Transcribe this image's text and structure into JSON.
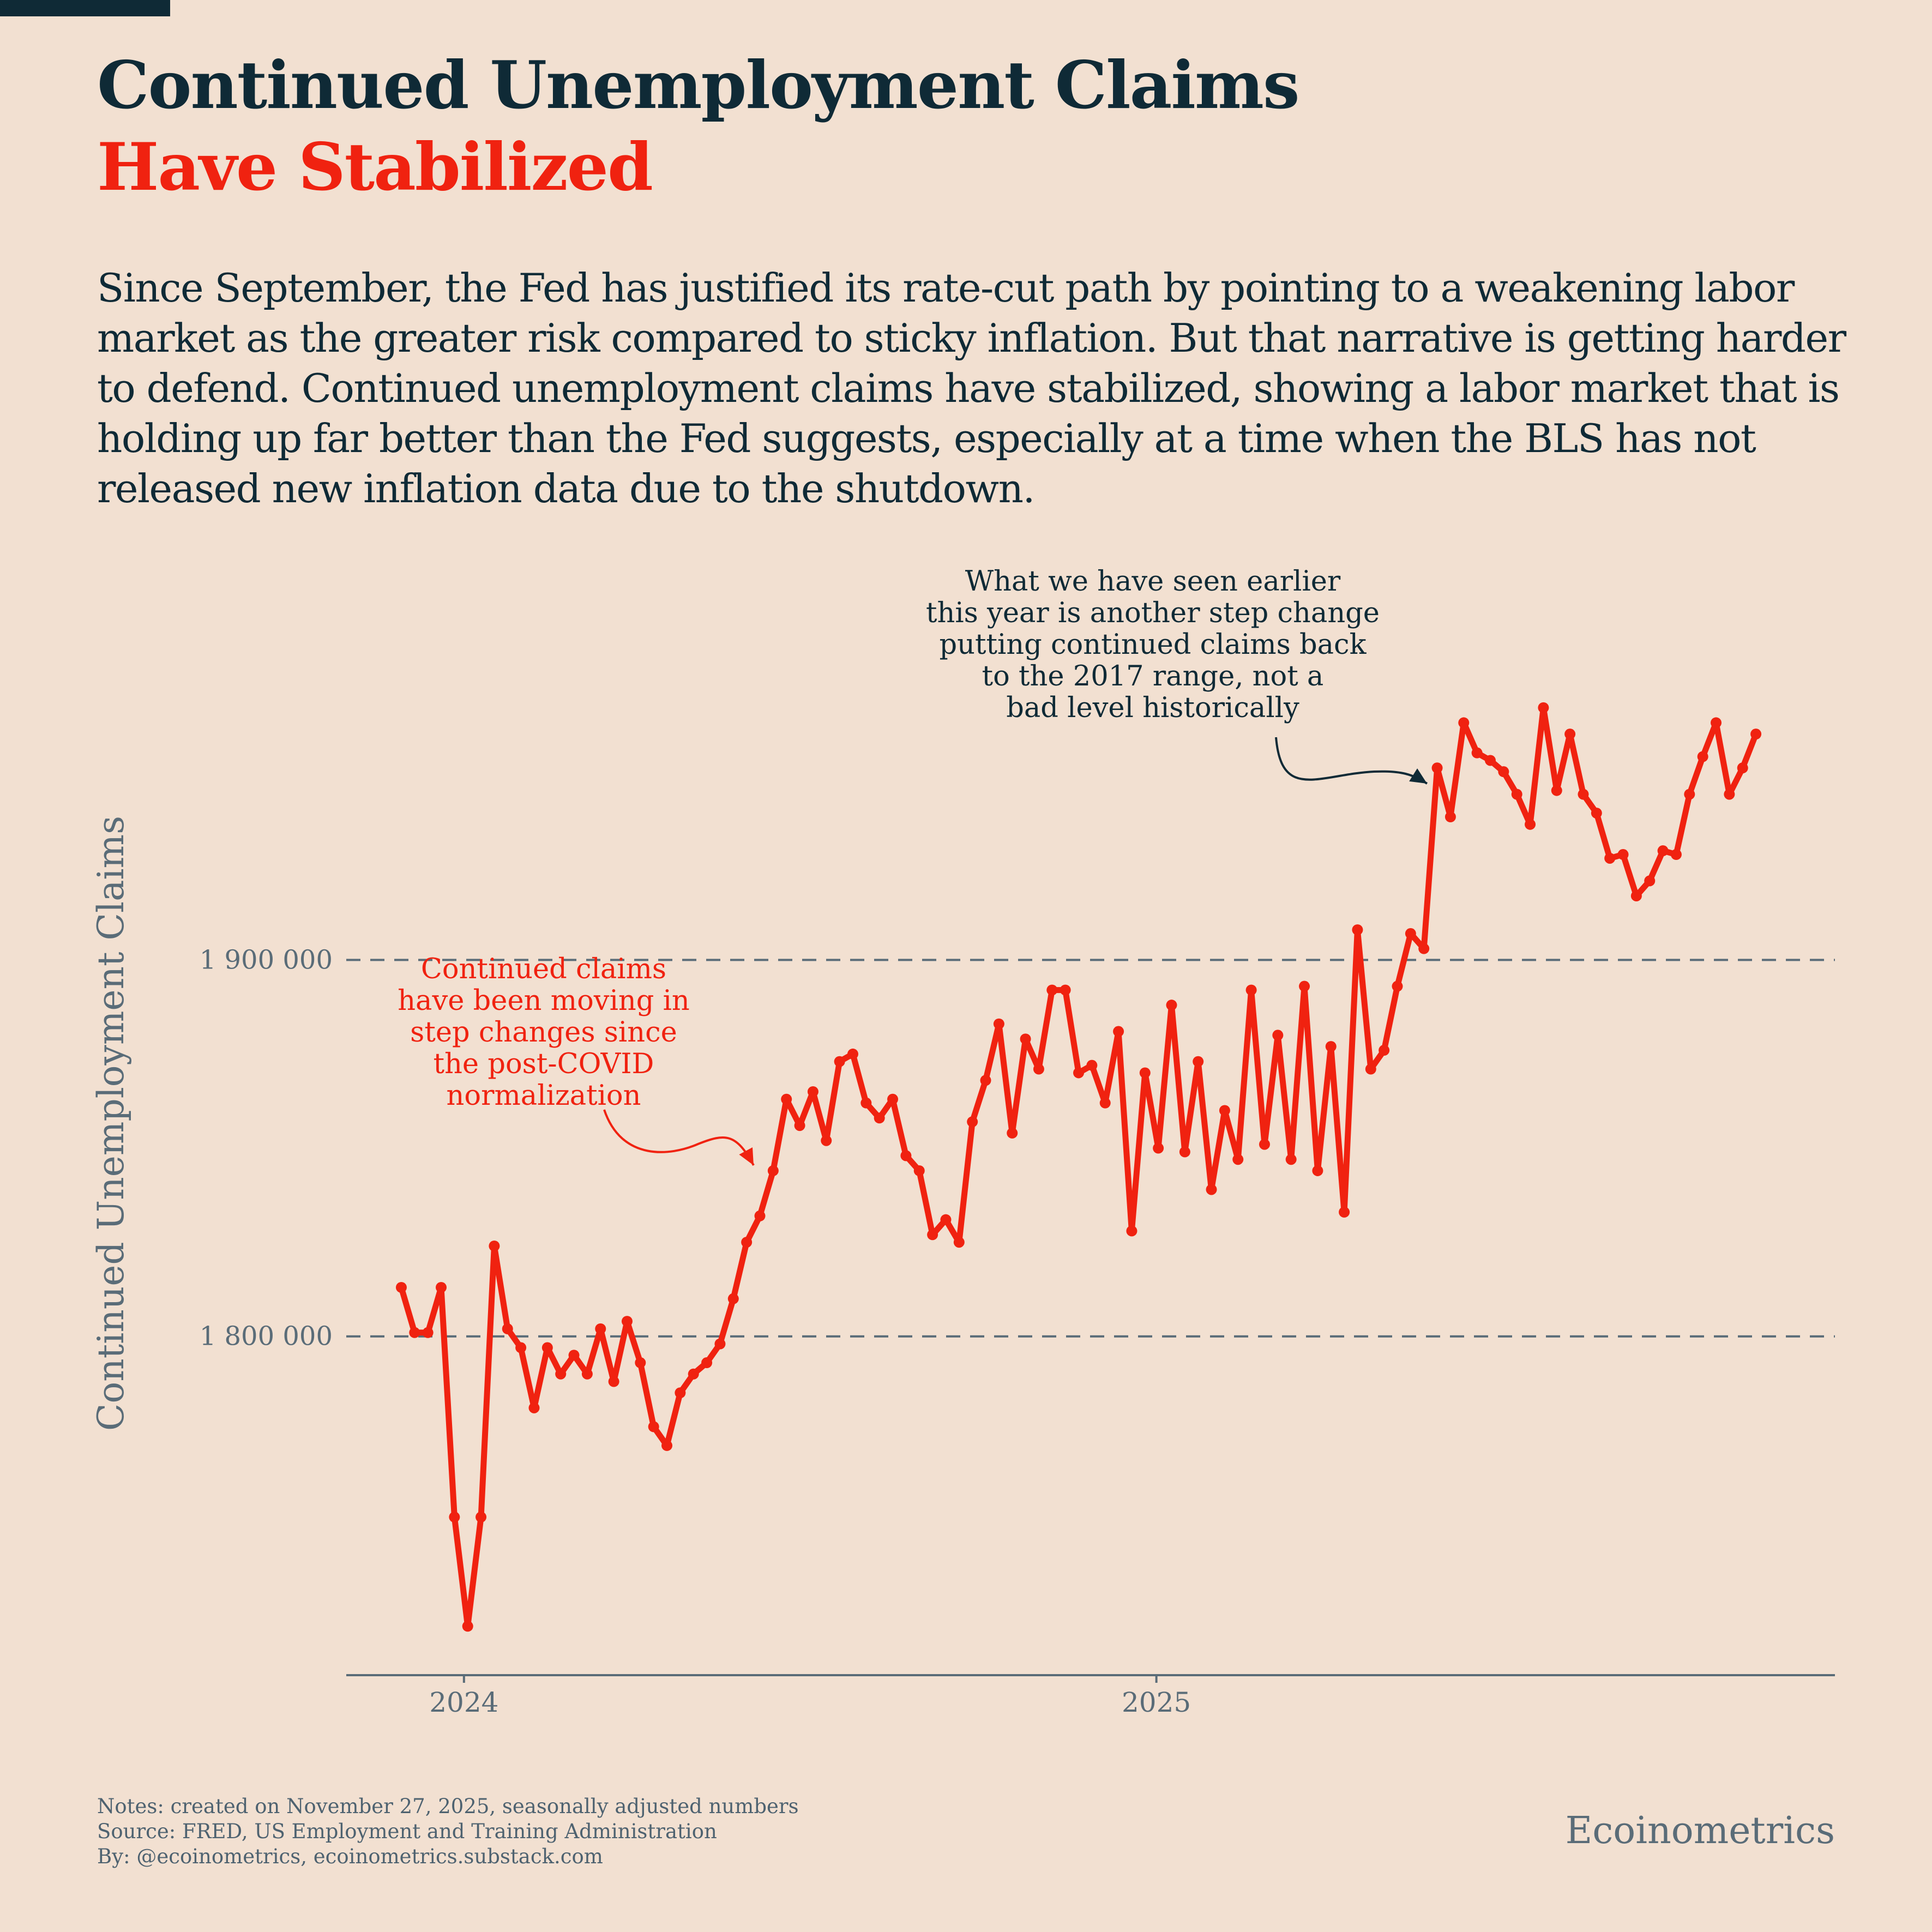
{
  "header": {
    "title": "Continued Unemployment Claims",
    "subtitle": "Have Stabilized",
    "intro": "Since September, the Fed has justified its rate-cut path by pointing to a weakening labor market as the greater risk compared to sticky inflation. But that narrative is getting harder to defend. Continued unemployment claims have stabilized, showing a labor market that is holding up far better than the Fed suggests, especially at a time when the BLS has not released new inflation data due to the shutdown."
  },
  "colors": {
    "background": "#f2e0d1",
    "title": "#0f2a36",
    "accent": "#f02210",
    "axis": "#5a6c78",
    "grid": "#5a6c78"
  },
  "chart_data": {
    "type": "line",
    "ylabel": "Continued Unemployment Claims",
    "xlabel": "",
    "xlim": [
      2023.83,
      2025.98
    ],
    "ylim": [
      1710000,
      2000000
    ],
    "xticks": [
      {
        "value": 2024.0,
        "label": "2024"
      },
      {
        "value": 2025.0,
        "label": "2025"
      }
    ],
    "yticks": [
      {
        "value": 1800000,
        "label": "1 800 000"
      },
      {
        "value": 1900000,
        "label": "1 900 000"
      }
    ],
    "grid": "horizontal-dashed",
    "series": [
      {
        "name": "Continued Unemployment Claims",
        "start": 2023.9095,
        "step": 0.01918,
        "values": [
          1813000,
          1801000,
          1801000,
          1813000,
          1752000,
          1723000,
          1752000,
          1824000,
          1802000,
          1797000,
          1781000,
          1797000,
          1790000,
          1795000,
          1790000,
          1802000,
          1788000,
          1804000,
          1793000,
          1776000,
          1771000,
          1785000,
          1790000,
          1793000,
          1798000,
          1810000,
          1825000,
          1832000,
          1844000,
          1863000,
          1856000,
          1865000,
          1852000,
          1873000,
          1875000,
          1862000,
          1858000,
          1863000,
          1848000,
          1844000,
          1827000,
          1831000,
          1825000,
          1857000,
          1868000,
          1883000,
          1854000,
          1879000,
          1871000,
          1892000,
          1892000,
          1870000,
          1872000,
          1862000,
          1881000,
          1828000,
          1870000,
          1850000,
          1888000,
          1849000,
          1873000,
          1839000,
          1860000,
          1847000,
          1892000,
          1851000,
          1880000,
          1847000,
          1893000,
          1844000,
          1877000,
          1833000,
          1908000,
          1871000,
          1876000,
          1893000,
          1907000,
          1903000,
          1951000,
          1938000,
          1963000,
          1955000,
          1953000,
          1950000,
          1944000,
          1936000,
          1967000,
          1945000,
          1960000,
          1944000,
          1939000,
          1927000,
          1928000,
          1917000,
          1921000,
          1929000,
          1928000,
          1944000,
          1954000,
          1963000,
          1944000,
          1951000,
          1960000
        ]
      }
    ],
    "annotations": [
      {
        "id": "step-changes",
        "color": "red",
        "lines": [
          "Continued claims",
          "have been moving in",
          "step changes since",
          "the post-COVID",
          "normalization"
        ]
      },
      {
        "id": "earlier-this-year",
        "color": "dark",
        "lines": [
          "What we have seen earlier",
          "this year is another step change",
          "putting continued claims back",
          "to the 2017 range, not a",
          "bad level historically"
        ]
      }
    ]
  },
  "footer": {
    "notes": "Notes: created on November 27, 2025, seasonally adjusted numbers",
    "source": "Source: FRED, US Employment and Training Administration",
    "by": "By: @ecoinometrics, ecoinometrics.substack.com",
    "brand": "Ecoinometrics"
  }
}
